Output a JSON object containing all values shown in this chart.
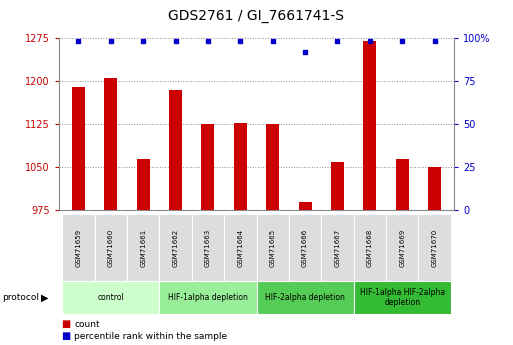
{
  "title": "GDS2761 / GI_7661741-S",
  "samples": [
    "GSM71659",
    "GSM71660",
    "GSM71661",
    "GSM71662",
    "GSM71663",
    "GSM71664",
    "GSM71665",
    "GSM71666",
    "GSM71667",
    "GSM71668",
    "GSM71669",
    "GSM71670"
  ],
  "counts": [
    1190,
    1205,
    1065,
    1185,
    1125,
    1127,
    1125,
    990,
    1060,
    1270,
    1065,
    1050
  ],
  "percentiles": [
    98,
    98,
    98,
    98,
    98,
    98,
    98,
    92,
    98,
    98,
    98,
    98
  ],
  "ylim_left": [
    975,
    1275
  ],
  "ylim_right": [
    0,
    100
  ],
  "yticks_left": [
    975,
    1050,
    1125,
    1200,
    1275
  ],
  "yticks_right": [
    0,
    25,
    50,
    75,
    100
  ],
  "bar_color": "#cc0000",
  "dot_color": "#0000cc",
  "groups": [
    {
      "label": "control",
      "start": 0,
      "end": 3,
      "color": "#ccffcc"
    },
    {
      "label": "HIF-1alpha depletion",
      "start": 3,
      "end": 6,
      "color": "#99ee99"
    },
    {
      "label": "HIF-2alpha depletion",
      "start": 6,
      "end": 9,
      "color": "#55cc55"
    },
    {
      "label": "HIF-1alpha HIF-2alpha\ndepletion",
      "start": 9,
      "end": 12,
      "color": "#33bb33"
    }
  ],
  "protocol_label": "protocol",
  "legend_count_label": "count",
  "legend_percentile_label": "percentile rank within the sample",
  "grid_color": "#888888",
  "bg_color": "#ffffff",
  "plot_bg_color": "#ffffff",
  "sample_cell_color": "#dddddd",
  "bar_width": 0.4
}
